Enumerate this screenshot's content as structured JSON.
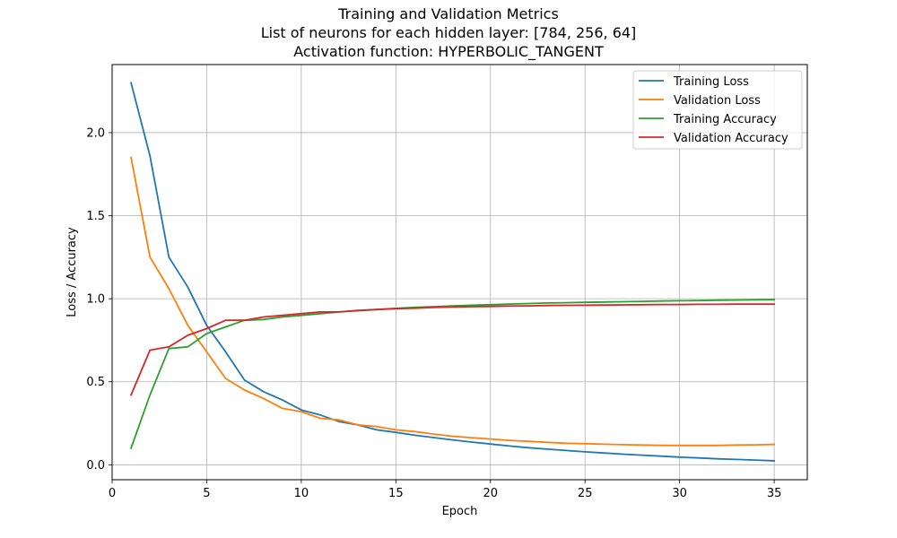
{
  "chart_data": {
    "type": "line",
    "title": [
      "Training and Validation Metrics",
      "List of neurons for each hidden layer: [784, 256, 64]",
      "Activation function: HYPERBOLIC_TANGENT"
    ],
    "xlabel": "Epoch",
    "ylabel": "Loss / Accuracy",
    "xlim": [
      0,
      36.75
    ],
    "ylim": [
      -0.09,
      2.41
    ],
    "xticks": [
      0,
      5,
      10,
      15,
      20,
      25,
      30,
      35
    ],
    "yticks": [
      0.0,
      0.5,
      1.0,
      1.5,
      2.0
    ],
    "xtick_labels": [
      "0",
      "5",
      "10",
      "15",
      "20",
      "25",
      "30",
      "35"
    ],
    "ytick_labels": [
      "0.0",
      "0.5",
      "1.0",
      "1.5",
      "2.0"
    ],
    "grid": true,
    "legend_position": "top-right",
    "x": [
      1,
      2,
      3,
      4,
      5,
      6,
      7,
      8,
      9,
      10,
      11,
      12,
      13,
      14,
      15,
      16,
      17,
      18,
      19,
      20,
      21,
      22,
      23,
      24,
      25,
      26,
      27,
      28,
      29,
      30,
      31,
      32,
      33,
      34,
      35
    ],
    "series": [
      {
        "name": "Training Loss",
        "color": "#1f77b4",
        "values": [
          2.3,
          1.86,
          1.25,
          1.07,
          0.84,
          0.68,
          0.51,
          0.44,
          0.39,
          0.33,
          0.3,
          0.26,
          0.24,
          0.21,
          0.195,
          0.178,
          0.164,
          0.15,
          0.137,
          0.125,
          0.113,
          0.103,
          0.094,
          0.086,
          0.078,
          0.071,
          0.064,
          0.058,
          0.052,
          0.046,
          0.041,
          0.036,
          0.032,
          0.028,
          0.024
        ]
      },
      {
        "name": "Validation Loss",
        "color": "#ff7f0e",
        "values": [
          1.85,
          1.25,
          1.06,
          0.84,
          0.68,
          0.52,
          0.45,
          0.4,
          0.34,
          0.32,
          0.28,
          0.27,
          0.24,
          0.23,
          0.21,
          0.2,
          0.185,
          0.172,
          0.163,
          0.155,
          0.147,
          0.141,
          0.135,
          0.13,
          0.127,
          0.124,
          0.121,
          0.119,
          0.117,
          0.116,
          0.116,
          0.116,
          0.119,
          0.12,
          0.123
        ]
      },
      {
        "name": "Training Accuracy",
        "color": "#2ca02c",
        "values": [
          0.1,
          0.42,
          0.7,
          0.71,
          0.79,
          0.83,
          0.87,
          0.875,
          0.89,
          0.9,
          0.91,
          0.92,
          0.928,
          0.935,
          0.942,
          0.948,
          0.952,
          0.957,
          0.961,
          0.964,
          0.968,
          0.971,
          0.974,
          0.976,
          0.978,
          0.98,
          0.982,
          0.984,
          0.986,
          0.988,
          0.989,
          0.991,
          0.992,
          0.993,
          0.994
        ]
      },
      {
        "name": "Validation Accuracy",
        "color": "#d62728",
        "values": [
          0.42,
          0.69,
          0.71,
          0.78,
          0.82,
          0.87,
          0.87,
          0.89,
          0.9,
          0.91,
          0.92,
          0.92,
          0.93,
          0.935,
          0.94,
          0.943,
          0.947,
          0.95,
          0.952,
          0.954,
          0.956,
          0.957,
          0.959,
          0.96,
          0.961,
          0.962,
          0.963,
          0.964,
          0.965,
          0.965,
          0.966,
          0.966,
          0.967,
          0.967,
          0.967
        ]
      }
    ]
  }
}
